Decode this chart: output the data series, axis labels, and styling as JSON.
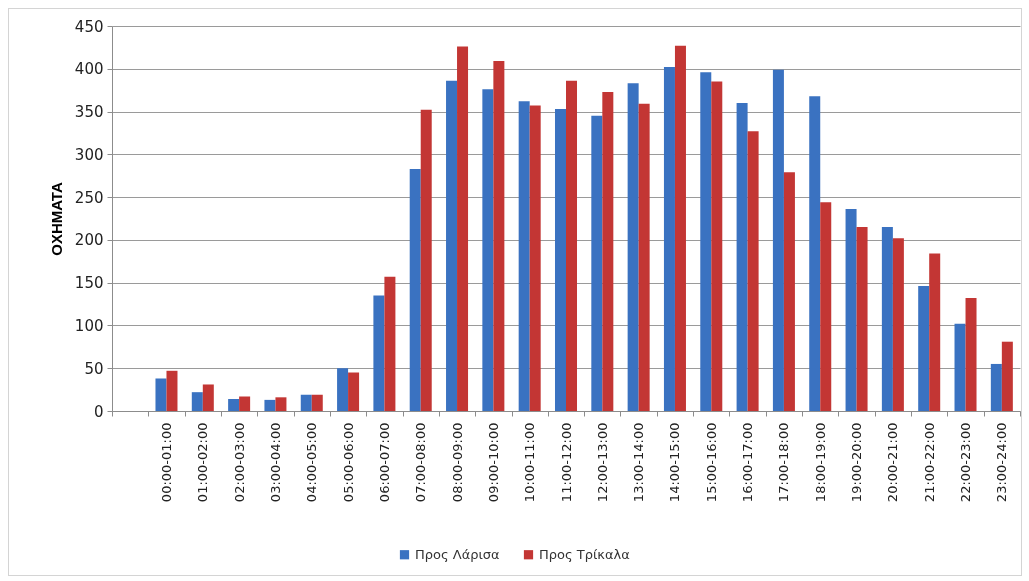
{
  "chart_data": {
    "type": "bar",
    "ylabel": "ΟΧΗΜΑΤΑ",
    "categories": [
      null,
      "00:00-01:00",
      "01:00-02:00",
      "02:00-03:00",
      "03:00-04:00",
      "04:00-05:00",
      "05:00-06:00",
      "06:00-07:00",
      "07:00-08:00",
      "08:00-09:00",
      "09:00-10:00",
      "10:00-11:00",
      "11:00-12:00",
      "12:00-13:00",
      "13:00-14:00",
      "14:00-15:00",
      "15:00-16:00",
      "16:00-17:00",
      "17:00-18:00",
      "18:00-19:00",
      "19:00-20:00",
      "20:00-21:00",
      "21:00-22:00",
      "22:00-23:00",
      "23:00-24:00"
    ],
    "series": [
      {
        "name": "Προς Λάρισα",
        "color": "#3a72c1",
        "values": [
          null,
          38,
          22,
          14,
          13,
          19,
          50,
          135,
          283,
          386,
          376,
          362,
          353,
          345,
          383,
          402,
          396,
          360,
          399,
          368,
          236,
          215,
          146,
          102,
          55
        ]
      },
      {
        "name": "Προς Τρίκαλα",
        "color": "#c33634",
        "values": [
          null,
          47,
          31,
          17,
          16,
          19,
          45,
          157,
          352,
          426,
          409,
          357,
          386,
          373,
          359,
          427,
          385,
          327,
          279,
          244,
          215,
          202,
          184,
          132,
          81
        ]
      }
    ],
    "ylim": [
      0,
      450
    ],
    "yticks": [
      0,
      50,
      100,
      150,
      200,
      250,
      300,
      350,
      400,
      450
    ],
    "grid": "y",
    "legend": "bottom"
  }
}
